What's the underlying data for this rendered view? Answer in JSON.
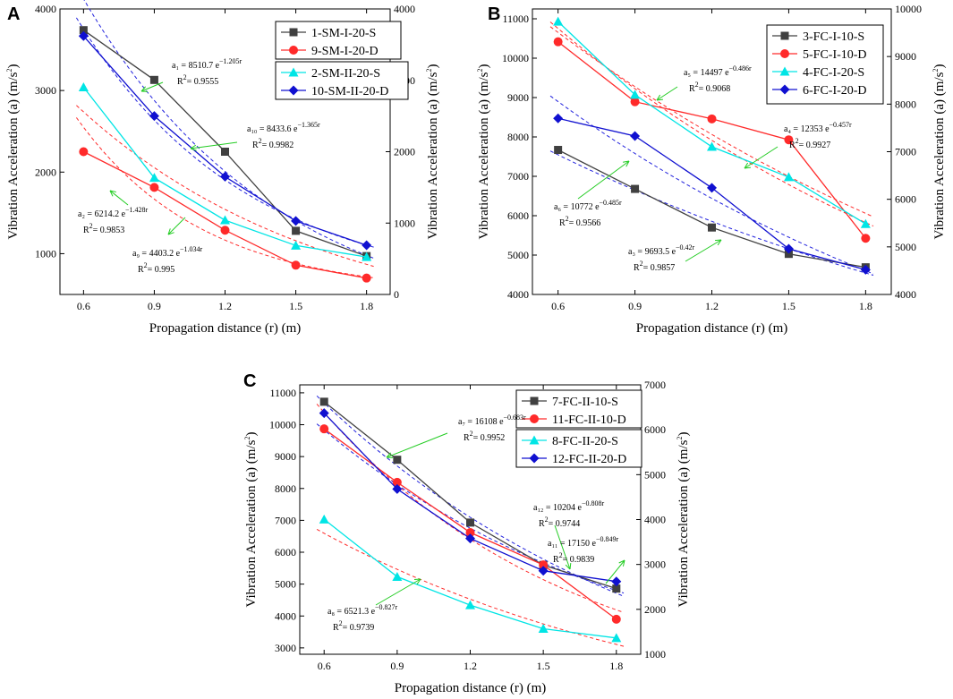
{
  "chart_data": [
    {
      "type": "line",
      "panel_letter": "A",
      "xlabel": "Propagation distance (r) (m)",
      "ylabel_left": "Vibration Acceleration (a) (m/s",
      "ylabel_right": "Vibration Acceleration (a) (m/s",
      "ylabel_unit_exp": "2",
      "ylabel_close": ")",
      "x": [
        0.6,
        0.9,
        1.2,
        1.5,
        1.8
      ],
      "x_tick_labels": [
        "0.6",
        "0.9",
        "1.2",
        "1.5",
        "1.8"
      ],
      "xlim": [
        0.5,
        1.9
      ],
      "ylim_left": [
        500,
        4000
      ],
      "ylim_right": [
        0,
        4000
      ],
      "yticks_left": [
        "1000",
        "2000",
        "3000",
        "4000"
      ],
      "yticks_right": [
        "0",
        "1000",
        "2000",
        "3000",
        "4000"
      ],
      "series": [
        {
          "name": "1-SM-I-20-S",
          "axis": "left",
          "color": "#404040",
          "marker": "square",
          "values": [
            3740,
            3130,
            2250,
            1280,
            970
          ]
        },
        {
          "name": "9-SM-I-20-D",
          "axis": "right",
          "color": "#ff2a2a",
          "marker": "circle",
          "values": [
            2000,
            1500,
            900,
            410,
            230
          ]
        },
        {
          "name": "2-SM-II-20-S",
          "axis": "left",
          "color": "#00e5e5",
          "marker": "triangle",
          "values": [
            3040,
            1930,
            1410,
            1100,
            960
          ]
        },
        {
          "name": "10-SM-II-20-D",
          "axis": "right",
          "color": "#1010d0",
          "marker": "diamond",
          "values": [
            3620,
            2500,
            1650,
            1030,
            690
          ]
        }
      ],
      "fits": [
        {
          "series": "1-SM-I-20-S",
          "equation": "a₁ = 8510.7 e",
          "exponent": "−1.205r",
          "r2_prefix": "R",
          "r2_exp": "2",
          "r2_value": "= 0.9555",
          "coef": 8510.7,
          "k": 1.205,
          "color": "#1010d0"
        },
        {
          "series": "10-SM-II-20-D",
          "equation": "a₁₀ = 8433.6 e",
          "exponent": "−1.365r",
          "r2_prefix": "R",
          "r2_exp": "2",
          "r2_value": "= 0.9982",
          "coef": 8433.6,
          "k": 1.365,
          "color": "#1010d0"
        },
        {
          "series": "2-SM-II-20-S",
          "equation": "a₂ = 6214.2 e",
          "exponent": "−1.428r",
          "r2_prefix": "R",
          "r2_exp": "2",
          "r2_value": "= 0.9853",
          "coef": 6214.2,
          "k": 1.428,
          "color": "#ff2a2a"
        },
        {
          "series": "9-SM-I-20-D",
          "equation": "a₉ = 4403.2 e",
          "exponent": "−1.034r",
          "r2_prefix": "R",
          "r2_exp": "2",
          "r2_value": "= 0.995",
          "coef": 4403.2,
          "k": 1.034,
          "color": "#ff2a2a"
        }
      ],
      "legend_groups": [
        [
          "1-SM-I-20-S",
          "9-SM-I-20-D"
        ],
        [
          "2-SM-II-20-S",
          "10-SM-II-20-D"
        ]
      ]
    },
    {
      "type": "line",
      "panel_letter": "B",
      "xlabel": "Propagation distance (r) (m)",
      "ylabel_left": "Vibration Acceleration (a) (m/s",
      "ylabel_right": "Vibration Acceleration (a) (m/s",
      "ylabel_unit_exp": "2",
      "ylabel_close": ")",
      "x": [
        0.6,
        0.9,
        1.2,
        1.5,
        1.8
      ],
      "x_tick_labels": [
        "0.6",
        "0.9",
        "1.2",
        "1.5",
        "1.8"
      ],
      "xlim": [
        0.5,
        1.9
      ],
      "ylim_left": [
        4000,
        11250
      ],
      "ylim_right": [
        4000,
        10000
      ],
      "yticks_left": [
        "4000",
        "5000",
        "6000",
        "7000",
        "8000",
        "9000",
        "10000",
        "11000"
      ],
      "yticks_right": [
        "4000",
        "5000",
        "6000",
        "7000",
        "8000",
        "9000",
        "10000"
      ],
      "series": [
        {
          "name": "3-FC-I-10-S",
          "axis": "left",
          "color": "#404040",
          "marker": "square",
          "values": [
            7670,
            6680,
            5700,
            5030,
            4690
          ]
        },
        {
          "name": "5-FC-I-10-D",
          "axis": "right",
          "color": "#ff2a2a",
          "marker": "circle",
          "values": [
            9310,
            8050,
            7690,
            7250,
            5180
          ]
        },
        {
          "name": "4-FC-I-20-S",
          "axis": "left",
          "color": "#00e5e5",
          "marker": "triangle",
          "values": [
            10930,
            9070,
            7750,
            6980,
            5790
          ]
        },
        {
          "name": "6-FC-I-20-D",
          "axis": "right",
          "color": "#1010d0",
          "marker": "diamond",
          "values": [
            7700,
            7330,
            6240,
            4960,
            4520
          ]
        }
      ],
      "fits": [
        {
          "series": "5-FC-I-10-D",
          "equation": "a₅ = 14497 e",
          "exponent": "−0.486r",
          "r2_prefix": "R",
          "r2_exp": "2",
          "r2_value": "= 0.9068",
          "color": "#1010d0"
        },
        {
          "series": "4-FC-I-20-S",
          "equation": "a₄ = 12353 e",
          "exponent": "−0.457r",
          "r2_prefix": "R",
          "r2_exp": "2",
          "r2_value": "= 0.9927",
          "color": "#1010d0"
        },
        {
          "series": "6-FC-I-20-D",
          "equation": "a₆ = 10772 e",
          "exponent": "−0.485r",
          "r2_prefix": "R",
          "r2_exp": "2",
          "r2_value": "= 0.9566",
          "color": "#ff2a2a"
        },
        {
          "series": "3-FC-I-10-S",
          "equation": "a₃ = 9693.5 e",
          "exponent": "−0.42r",
          "r2_prefix": "R",
          "r2_exp": "2",
          "r2_value": "= 0.9857",
          "color": "#1010d0"
        }
      ],
      "legend_groups": [
        [
          "3-FC-I-10-S",
          "5-FC-I-10-D",
          "4-FC-I-20-S",
          "6-FC-I-20-D"
        ]
      ]
    },
    {
      "type": "line",
      "panel_letter": "C",
      "xlabel": "Propagation distance (r) (m)",
      "ylabel_left": "Vibration Acceleration (a) (m/s",
      "ylabel_right": "Vibration Acceleration (a) (m/s",
      "ylabel_unit_exp": "2",
      "ylabel_close": ")",
      "x": [
        0.6,
        0.9,
        1.2,
        1.5,
        1.8
      ],
      "x_tick_labels": [
        "0.6",
        "0.9",
        "1.2",
        "1.5",
        "1.8"
      ],
      "xlim": [
        0.5,
        1.9
      ],
      "ylim_left": [
        2800,
        11250
      ],
      "ylim_right": [
        1000,
        7000
      ],
      "yticks_left": [
        "3000",
        "4000",
        "5000",
        "6000",
        "7000",
        "8000",
        "9000",
        "10000",
        "11000"
      ],
      "yticks_right": [
        "1000",
        "2000",
        "3000",
        "4000",
        "5000",
        "6000",
        "7000"
      ],
      "series": [
        {
          "name": "7-FC-II-10-S",
          "axis": "left",
          "color": "#404040",
          "marker": "square",
          "values": [
            10720,
            8900,
            6930,
            5600,
            4860
          ]
        },
        {
          "name": "11-FC-II-10-D",
          "axis": "right",
          "color": "#ff2a2a",
          "marker": "circle",
          "values": [
            6020,
            4830,
            3710,
            2990,
            1780
          ]
        },
        {
          "name": "8-FC-II-20-S",
          "axis": "left",
          "color": "#00e5e5",
          "marker": "triangle",
          "values": [
            7030,
            5230,
            4340,
            3600,
            3310
          ]
        },
        {
          "name": "12-FC-II-20-D",
          "axis": "right",
          "color": "#1010d0",
          "marker": "diamond",
          "values": [
            6370,
            4680,
            3580,
            2860,
            2620
          ]
        }
      ],
      "fits": [
        {
          "series": "7-FC-II-10-S",
          "equation": "a₇ = 16108 e",
          "exponent": "−0.683r",
          "r2_prefix": "R",
          "r2_exp": "2",
          "r2_value": "= 0.9952",
          "coef": 16108,
          "k": 0.683,
          "color": "#1010d0"
        },
        {
          "series": "12-FC-II-20-D",
          "equation": "a₁₂ = 10204 e",
          "exponent": "−0.808r",
          "r2_prefix": "R",
          "r2_exp": "2",
          "r2_value": "= 0.9744",
          "color": "#1010d0"
        },
        {
          "series": "11-FC-II-10-D",
          "equation": "a₁₁ = 17150 e",
          "exponent": "−0.849r",
          "r2_prefix": "R",
          "r2_exp": "2",
          "r2_value": "= 0.9839",
          "color": "#ff2a2a"
        },
        {
          "series": "8-FC-II-20-S",
          "equation": "a₈ = 6521.3 e",
          "exponent": "−0.827r",
          "r2_prefix": "R",
          "r2_exp": "2",
          "r2_value": "= 0.9739",
          "coef": 6521.3,
          "k": 0.827,
          "color": "#ff2a2a"
        }
      ],
      "legend_groups": [
        [
          "7-FC-II-10-S",
          "11-FC-II-10-D"
        ],
        [
          "8-FC-II-20-S",
          "12-FC-II-20-D"
        ]
      ]
    }
  ]
}
